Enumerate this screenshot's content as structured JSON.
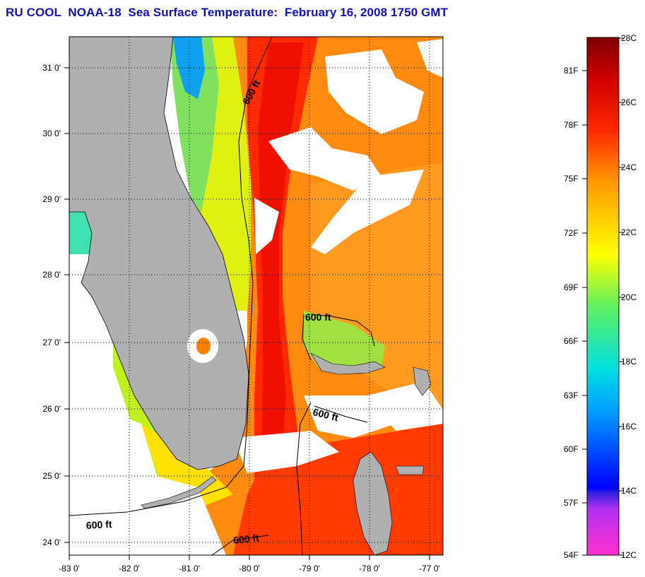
{
  "title": "RU COOL  NOAA-18  Sea Surface Temperature:  February 16, 2008 1750 GMT",
  "map": {
    "lat_labels": [
      "31 0'",
      "30 0'",
      "29 0'",
      "28 0'",
      "27 0'",
      "26 0'",
      "25 0'",
      "24 0'"
    ],
    "lon_labels": [
      "-83 0'",
      "-82 0'",
      "-81 0'",
      "-80 0'",
      "-79 0'",
      "-78 0'",
      "-77 0'"
    ],
    "contour_labels": [
      "600 ft",
      "600 ft",
      "600 ft",
      "600 ft",
      "600 ft"
    ]
  },
  "colorbar": {
    "fahrenheit_labels": [
      "81F",
      "78F",
      "75F",
      "72F",
      "69F",
      "66F",
      "63F",
      "60F",
      "57F",
      "54F"
    ],
    "celsius_labels": [
      "28C",
      "26C",
      "24C",
      "22C",
      "20C",
      "18C",
      "16C",
      "14C",
      "12C"
    ],
    "colors": [
      "#ff30d0",
      "#b030f0",
      "#3020e0",
      "#0060ff",
      "#00c0ff",
      "#20e0a0",
      "#a0f020",
      "#ffff00",
      "#ffb000",
      "#ff6000",
      "#ff1800",
      "#d00000",
      "#800000"
    ]
  }
}
